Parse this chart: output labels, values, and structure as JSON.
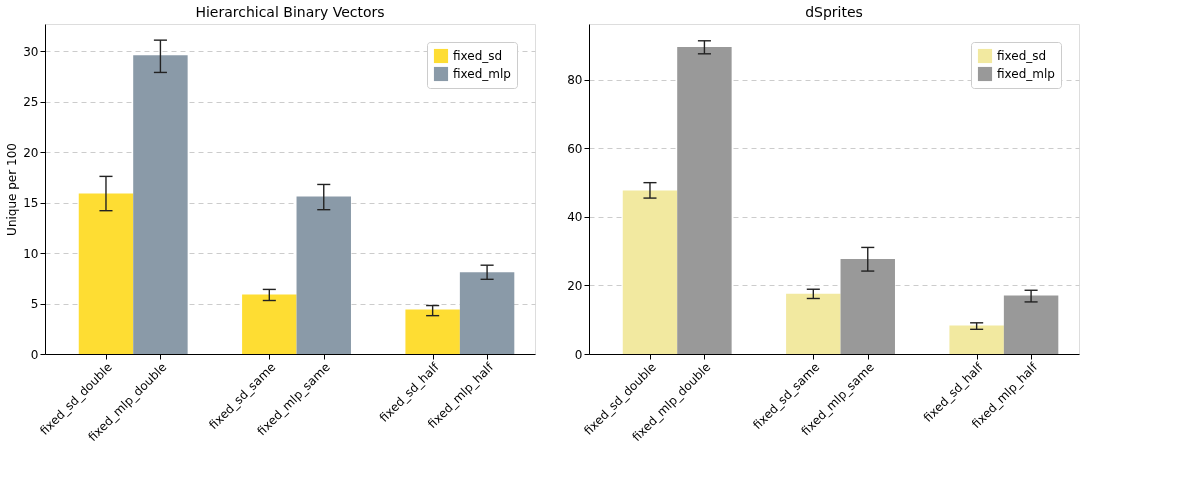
{
  "chart_data": [
    {
      "type": "bar",
      "title": "Hierarchical Binary Vectors",
      "ylabel": "Unique per 100",
      "categories": [
        "fixed_sd_double",
        "fixed_mlp_double",
        "fixed_sd_same",
        "fixed_mlp_same",
        "fixed_sd_half",
        "fixed_mlp_half"
      ],
      "series": [
        {
          "name": "fixed_sd",
          "color": "#fedd33",
          "values": [
            15.9,
            null,
            5.9,
            null,
            4.4,
            null
          ],
          "errors": [
            [
              14.2,
              17.6
            ],
            null,
            [
              5.3,
              6.4
            ],
            null,
            [
              3.8,
              4.8
            ],
            null
          ]
        },
        {
          "name": "fixed_mlp",
          "color": "#8a9aa8",
          "values": [
            null,
            29.6,
            null,
            15.6,
            null,
            8.1
          ],
          "errors": [
            null,
            [
              27.9,
              31.1
            ],
            null,
            [
              14.3,
              16.8
            ],
            null,
            [
              7.4,
              8.8
            ]
          ]
        }
      ],
      "ylim": [
        0,
        32.7
      ],
      "yticks": [
        0,
        5,
        10,
        15,
        20,
        25,
        30
      ],
      "grid": "y",
      "legend": "top right"
    },
    {
      "type": "bar",
      "title": "dSprites",
      "categories": [
        "fixed_sd_double",
        "fixed_mlp_double",
        "fixed_sd_same",
        "fixed_mlp_same",
        "fixed_sd_half",
        "fixed_mlp_half"
      ],
      "series": [
        {
          "name": "fixed_sd",
          "color": "#f2e9a0",
          "values": [
            47.7,
            null,
            17.6,
            null,
            8.3,
            null
          ],
          "errors": [
            [
              45.5,
              50.0
            ],
            null,
            [
              16.2,
              18.9
            ],
            null,
            [
              7.2,
              9.1
            ],
            null
          ]
        },
        {
          "name": "fixed_mlp",
          "color": "#999999",
          "values": [
            null,
            89.6,
            null,
            27.7,
            null,
            17.1
          ],
          "errors": [
            null,
            [
              87.6,
              91.4
            ],
            null,
            [
              24.2,
              31.1
            ],
            null,
            [
              15.2,
              18.6
            ]
          ]
        }
      ],
      "ylim": [
        0,
        96.3
      ],
      "yticks": [
        0,
        20,
        40,
        60,
        80
      ],
      "grid": "y",
      "legend": "top right"
    }
  ]
}
